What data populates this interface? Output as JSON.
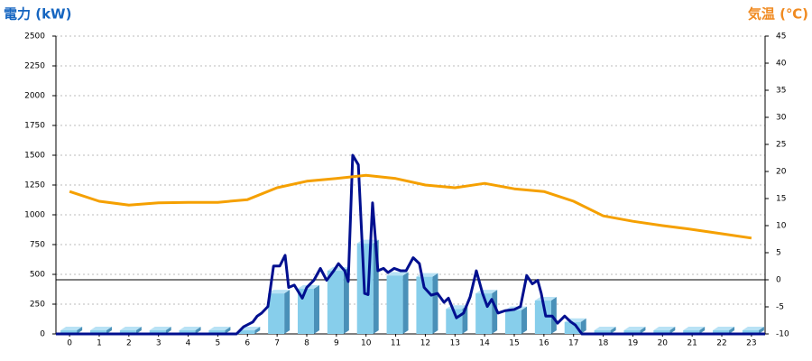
{
  "chart_data": {
    "type": "combo",
    "y_title": "電力 (kW)",
    "y2_title": "気温 (℃)",
    "y_title_color": "#1565c0",
    "y2_title_color": "#f08a20",
    "xlim": [
      -0.46,
      23.46
    ],
    "xticks": [
      0,
      1,
      2,
      3,
      4,
      5,
      6,
      7,
      8,
      9,
      10,
      11,
      12,
      13,
      14,
      15,
      16,
      17,
      18,
      19,
      20,
      21,
      22,
      23
    ],
    "ylim": [
      0,
      2500
    ],
    "yticks": [
      0,
      250,
      500,
      750,
      1000,
      1250,
      1500,
      1750,
      2000,
      2250,
      2500
    ],
    "y2lim": [
      -10,
      45
    ],
    "y2ticks": [
      -10,
      -5,
      0,
      5,
      10,
      15,
      20,
      25,
      30,
      35,
      40,
      45
    ],
    "grid": true,
    "series": [
      {
        "type": "bar",
        "color": "#87ceeb",
        "x": [
          0,
          1,
          2,
          3,
          4,
          5,
          6,
          7,
          8,
          9,
          10,
          11,
          12,
          13,
          14,
          15,
          16,
          17,
          18,
          19,
          20,
          21,
          22,
          23
        ],
        "values": [
          30,
          30,
          30,
          30,
          30,
          30,
          30,
          340,
          380,
          530,
          760,
          490,
          480,
          210,
          340,
          200,
          280,
          100,
          30,
          30,
          30,
          30,
          30,
          30
        ]
      },
      {
        "type": "line",
        "color": "#000f8f",
        "x": [
          -0.46,
          5.63,
          5.87,
          6.18,
          6.33,
          6.48,
          6.69,
          6.88,
          7.09,
          7.27,
          7.39,
          7.58,
          7.85,
          8.0,
          8.24,
          8.46,
          8.67,
          8.91,
          9.07,
          9.28,
          9.4,
          9.55,
          9.74,
          9.95,
          10.07,
          10.22,
          10.4,
          10.59,
          10.74,
          10.95,
          11.17,
          11.35,
          11.59,
          11.8,
          11.96,
          12.2,
          12.41,
          12.63,
          12.78,
          13.05,
          13.29,
          13.51,
          13.72,
          13.93,
          14.09,
          14.24,
          14.45,
          14.69,
          15.0,
          15.21,
          15.42,
          15.61,
          15.79,
          15.91,
          16.06,
          16.28,
          16.46,
          16.7,
          16.91,
          17.06,
          17.28,
          23.46
        ],
        "values": [
          0,
          0,
          60,
          100,
          150,
          175,
          230,
          570,
          570,
          660,
          390,
          410,
          300,
          390,
          450,
          550,
          450,
          530,
          590,
          530,
          440,
          1500,
          1420,
          340,
          330,
          1100,
          530,
          550,
          515,
          550,
          530,
          530,
          640,
          590,
          390,
          325,
          340,
          265,
          300,
          135,
          175,
          310,
          530,
          340,
          230,
          290,
          175,
          195,
          205,
          230,
          490,
          420,
          450,
          340,
          150,
          150,
          90,
          150,
          100,
          75,
          0,
          0
        ]
      },
      {
        "type": "line",
        "axis": "y2",
        "color": "#f5a000",
        "x": [
          0,
          1,
          2,
          3,
          4,
          5,
          6,
          7,
          8,
          9,
          10,
          11,
          12,
          13,
          14,
          15,
          16,
          17,
          18,
          19,
          20,
          21,
          22,
          23
        ],
        "values": [
          16.3,
          14.5,
          13.8,
          14.2,
          14.3,
          14.3,
          14.8,
          17,
          18.2,
          18.7,
          19.3,
          18.7,
          17.5,
          17,
          17.8,
          16.8,
          16.3,
          14.5,
          11.8,
          10.8,
          10,
          9.3,
          8.5,
          7.7
        ]
      }
    ]
  }
}
